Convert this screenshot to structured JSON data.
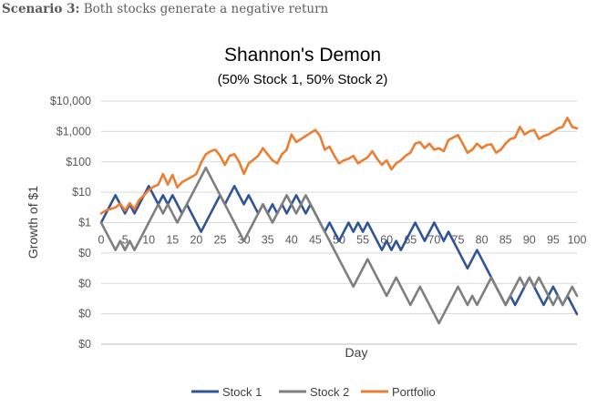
{
  "scenario": {
    "prefix": "Scenario 3:",
    "text": " Both stocks generate a negative return"
  },
  "chart_data": {
    "type": "line",
    "title": "Shannon's Demon",
    "subtitle": "(50% Stock 1, 50% Stock 2)",
    "xlabel": "Day",
    "ylabel": "Growth of $1",
    "xlim": [
      0,
      100
    ],
    "ylim_log10": [
      -4,
      4
    ],
    "x_ticks": [
      0,
      5,
      10,
      15,
      20,
      25,
      30,
      35,
      40,
      45,
      50,
      55,
      60,
      65,
      70,
      75,
      80,
      85,
      90,
      95,
      100
    ],
    "y_ticks": [
      {
        "log": 4,
        "label": "$10,000"
      },
      {
        "log": 3,
        "label": "$1,000"
      },
      {
        "log": 2,
        "label": "$100"
      },
      {
        "log": 1,
        "label": "$10"
      },
      {
        "log": 0,
        "label": "$1"
      },
      {
        "log": -1,
        "label": "$0"
      },
      {
        "log": -2,
        "label": "$0"
      },
      {
        "log": -3,
        "label": "$0"
      },
      {
        "log": -4,
        "label": "$0"
      }
    ],
    "series": [
      {
        "name": "Stock 1",
        "color": "#2f5597",
        "log10_values": [
          0,
          0.301,
          0.602,
          0.903,
          0.602,
          0.301,
          0.602,
          0.301,
          0.602,
          0.903,
          1.204,
          0.903,
          0.602,
          0.903,
          0.602,
          0.903,
          0.602,
          0.301,
          0.602,
          0.301,
          0,
          -0.301,
          0,
          0.301,
          0.602,
          0.903,
          0.602,
          0.903,
          1.204,
          0.903,
          0.602,
          0.903,
          0.602,
          0.301,
          0.602,
          0.301,
          0.602,
          0.301,
          0.602,
          0.301,
          0.602,
          0.903,
          0.602,
          0.301,
          0.602,
          0.301,
          0,
          -0.301,
          0,
          -0.301,
          -0.602,
          -0.301,
          0,
          -0.301,
          0,
          -0.301,
          0,
          -0.301,
          -0.602,
          -0.903,
          -0.602,
          -0.903,
          -0.602,
          -0.903,
          -0.602,
          -0.301,
          0,
          -0.301,
          -0.602,
          -0.301,
          0,
          -0.301,
          -0.602,
          -0.301,
          -0.602,
          -0.903,
          -1.204,
          -1.505,
          -1.204,
          -0.903,
          -1.204,
          -1.505,
          -1.806,
          -2.107,
          -2.408,
          -2.709,
          -2.408,
          -2.709,
          -2.408,
          -2.107,
          -1.806,
          -2.107,
          -2.408,
          -2.709,
          -2.408,
          -2.107,
          -2.408,
          -2.709,
          -2.408,
          -2.709,
          -3.01
        ]
      },
      {
        "name": "Stock 2",
        "color": "#7f7f7f",
        "log10_values": [
          0,
          -0.301,
          -0.602,
          -0.903,
          -0.602,
          -0.903,
          -0.602,
          -0.903,
          -0.602,
          -0.301,
          0,
          0.301,
          0.602,
          0.301,
          0.602,
          0.301,
          0,
          0.301,
          0.602,
          0.903,
          1.204,
          1.505,
          1.806,
          1.505,
          1.204,
          0.903,
          0.602,
          0.301,
          0,
          -0.301,
          -0.602,
          -0.301,
          0,
          0.301,
          0.602,
          0.301,
          0,
          0.301,
          0.602,
          0.903,
          0.602,
          0.301,
          0.602,
          0.903,
          0.602,
          0.301,
          0,
          -0.301,
          -0.602,
          -0.903,
          -1.204,
          -1.505,
          -1.806,
          -2.107,
          -1.806,
          -1.505,
          -1.204,
          -1.505,
          -1.806,
          -2.107,
          -2.408,
          -2.107,
          -1.806,
          -2.107,
          -2.408,
          -2.709,
          -2.408,
          -2.107,
          -2.408,
          -2.709,
          -3.01,
          -3.311,
          -3.01,
          -2.709,
          -2.408,
          -2.107,
          -2.408,
          -2.709,
          -2.408,
          -2.709,
          -2.408,
          -2.107,
          -1.806,
          -2.107,
          -2.408,
          -2.709,
          -2.408,
          -2.107,
          -1.806,
          -2.107,
          -1.806,
          -2.107,
          -1.806,
          -2.107,
          -2.408,
          -2.709,
          -2.408,
          -2.709,
          -2.408,
          -2.107,
          -2.408
        ]
      },
      {
        "name": "Portfolio",
        "color": "#ed7d31",
        "log10_values": [
          0.301,
          0.402,
          0.45,
          0.5,
          0.62,
          0.4,
          0.64,
          0.45,
          0.75,
          0.9,
          1.07,
          1.18,
          1.25,
          1.6,
          1.25,
          1.57,
          1.16,
          1.33,
          1.42,
          1.5,
          1.6,
          1.97,
          2.25,
          2.35,
          2.4,
          2.2,
          1.9,
          2.2,
          2.25,
          2.0,
          1.6,
          1.95,
          2.07,
          2.2,
          2.45,
          2.25,
          2.05,
          1.95,
          2.25,
          2.4,
          2.9,
          2.65,
          2.75,
          2.85,
          2.95,
          3.05,
          2.85,
          2.4,
          2.5,
          2.2,
          1.95,
          2.05,
          2.1,
          2.2,
          1.95,
          2.05,
          2.15,
          2.35,
          2.1,
          1.9,
          2.05,
          1.75,
          1.95,
          2.05,
          2.2,
          2.3,
          2.6,
          2.65,
          2.45,
          2.6,
          2.4,
          2.45,
          2.35,
          2.72,
          2.8,
          2.88,
          2.6,
          2.3,
          2.4,
          2.6,
          2.45,
          2.55,
          2.58,
          2.3,
          2.4,
          2.6,
          2.75,
          2.8,
          3.15,
          2.9,
          3.0,
          3.05,
          2.75,
          2.85,
          2.9,
          3.0,
          3.1,
          3.15,
          3.45,
          3.15,
          3.1
        ]
      }
    ],
    "legend_position": "bottom",
    "grid": true
  }
}
